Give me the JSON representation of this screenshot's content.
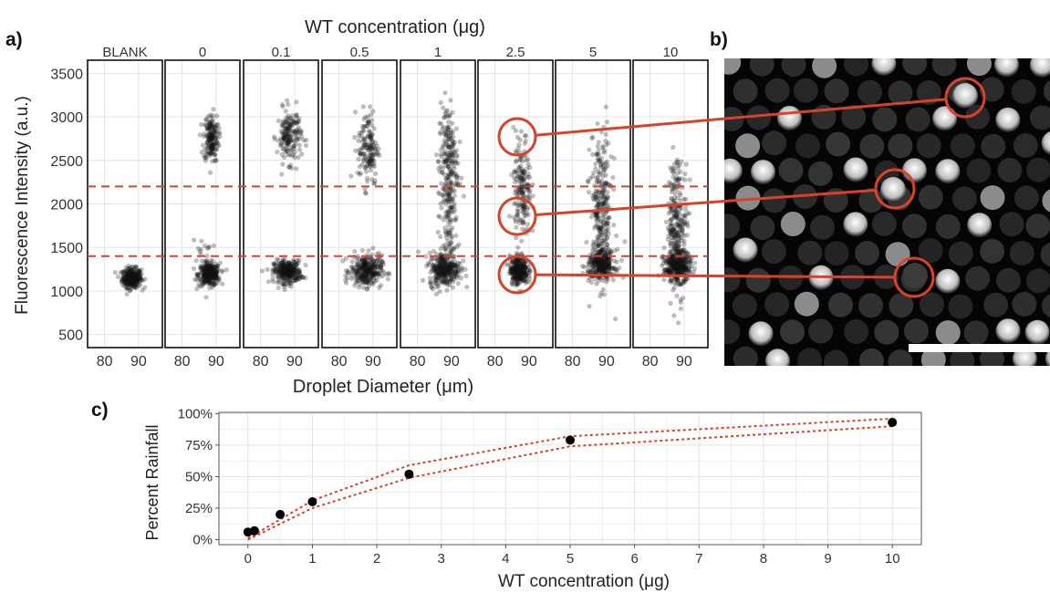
{
  "panel_labels": {
    "a": "a)",
    "b": "b)",
    "c": "c)"
  },
  "colors": {
    "accent_red": "#d9412b",
    "points": "#111111",
    "grid": "#e3e3e3",
    "frame": "#111111"
  },
  "chart_data": [
    {
      "type": "scatter",
      "panel": "a",
      "title": "WT concentration (μg)",
      "xlabel": "Droplet Diameter (μm)",
      "ylabel": "Fluorescence Intensity (a.u.)",
      "facets": [
        "BLANK",
        "0",
        "0.1",
        "0.5",
        "1",
        "2.5",
        "5",
        "10"
      ],
      "x_ticks": [
        "80",
        "90"
      ],
      "xlim": [
        75,
        97
      ],
      "y_ticks": [
        "500",
        "1000",
        "1500",
        "2000",
        "2500",
        "3000",
        "3500"
      ],
      "ylim": [
        350,
        3650
      ],
      "thresholds": [
        1400,
        2200
      ],
      "threshold_style": "dashed",
      "clusters": [
        [
          {
            "x": 88,
            "y": 1150,
            "sx": 1.4,
            "sy": 55,
            "n": 320
          }
        ],
        [
          {
            "x": 88,
            "y": 1190,
            "sx": 1.6,
            "sy": 65,
            "n": 300
          },
          {
            "x": 88.5,
            "y": 2760,
            "sx": 1.1,
            "sy": 140,
            "n": 170
          },
          {
            "x": 86,
            "y": 1450,
            "sx": 1.5,
            "sy": 70,
            "n": 15
          }
        ],
        [
          {
            "x": 88,
            "y": 1220,
            "sx": 2.0,
            "sy": 65,
            "n": 300
          },
          {
            "x": 88.5,
            "y": 2780,
            "sx": 1.8,
            "sy": 150,
            "n": 170
          }
        ],
        [
          {
            "x": 88,
            "y": 1230,
            "sx": 2.3,
            "sy": 90,
            "n": 300
          },
          {
            "x": 88.5,
            "y": 2650,
            "sx": 1.5,
            "sy": 220,
            "n": 150
          }
        ],
        [
          {
            "x": 88,
            "y": 1250,
            "sx": 2.3,
            "sy": 95,
            "n": 300
          },
          {
            "x": 89,
            "y": 2450,
            "sx": 1.4,
            "sy": 360,
            "n": 220
          },
          {
            "x": 89,
            "y": 1700,
            "sx": 1.3,
            "sy": 220,
            "n": 60
          }
        ],
        [
          {
            "x": 87,
            "y": 1240,
            "sx": 1.3,
            "sy": 80,
            "n": 300
          },
          {
            "x": 88,
            "y": 2150,
            "sx": 1.3,
            "sy": 330,
            "n": 180
          }
        ],
        [
          {
            "x": 88.5,
            "y": 1300,
            "sx": 2.0,
            "sy": 85,
            "n": 300
          },
          {
            "x": 88.5,
            "y": 1950,
            "sx": 1.6,
            "sy": 420,
            "n": 260
          }
        ],
        [
          {
            "x": 88,
            "y": 1280,
            "sx": 2.0,
            "sy": 85,
            "n": 300
          },
          {
            "x": 88,
            "y": 1750,
            "sx": 1.5,
            "sy": 380,
            "n": 280
          }
        ]
      ]
    },
    {
      "type": "scatter",
      "panel": "c",
      "xlabel": "WT concentration (μg)",
      "ylabel": "Percent Rainfall",
      "x_ticks": [
        "0",
        "1",
        "2",
        "3",
        "4",
        "5",
        "6",
        "7",
        "8",
        "9",
        "10"
      ],
      "y_ticks": [
        "0%",
        "25%",
        "50%",
        "75%",
        "100%"
      ],
      "xlim": [
        -0.45,
        10.45
      ],
      "ylim": [
        -4,
        101
      ],
      "points": [
        {
          "x": 0,
          "y": 6
        },
        {
          "x": 0.1,
          "y": 7
        },
        {
          "x": 0.5,
          "y": 20
        },
        {
          "x": 1,
          "y": 30
        },
        {
          "x": 2.5,
          "y": 52
        },
        {
          "x": 5,
          "y": 79
        },
        {
          "x": 10,
          "y": 93
        }
      ],
      "bands": [
        {
          "style": "dotted",
          "x": [
            0,
            1,
            2.5,
            5,
            10
          ],
          "y": [
            1,
            31,
            59,
            82,
            96
          ]
        },
        {
          "style": "dotted",
          "x": [
            0,
            1,
            2.5,
            5,
            10
          ],
          "y": [
            0,
            25,
            49,
            74,
            90
          ]
        }
      ]
    }
  ]
}
